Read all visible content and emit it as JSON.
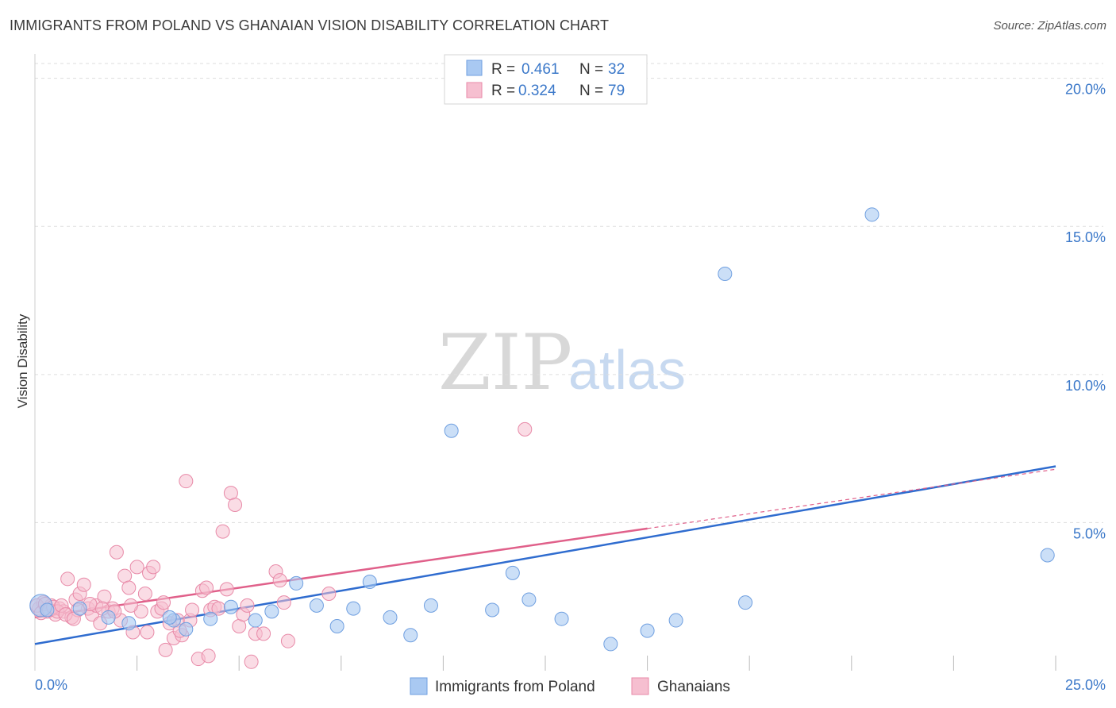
{
  "header": {
    "title": "IMMIGRANTS FROM POLAND VS GHANAIAN VISION DISABILITY CORRELATION CHART",
    "source": "Source: ZipAtlas.com"
  },
  "watermark": {
    "zip": "ZIP",
    "atlas": "atlas"
  },
  "colors": {
    "blue_fill": "#a9c9f2",
    "blue_stroke": "#6f9fe0",
    "blue_line": "#2f6ccf",
    "pink_fill": "#f6bfd0",
    "pink_stroke": "#e88aa8",
    "pink_line": "#e0608a",
    "grid": "#dddddd",
    "tick_text": "#3b78c9"
  },
  "legend": {
    "rows": [
      {
        "r_label": "R =",
        "r_value": "0.461",
        "n_label": "N =",
        "n_value": "32"
      },
      {
        "r_label": "R =",
        "r_value": "0.324",
        "n_label": "N =",
        "n_value": "79"
      }
    ]
  },
  "chart_data": {
    "type": "scatter",
    "title": "IMMIGRANTS FROM POLAND VS GHANAIAN VISION DISABILITY CORRELATION CHART",
    "xlabel": "",
    "ylabel": "Vision Disability",
    "xlim": [
      0,
      25
    ],
    "ylim": [
      0,
      20.5
    ],
    "x_tick_labels": [
      "0.0%",
      "25.0%"
    ],
    "y_ticks": [
      5,
      10,
      15,
      20
    ],
    "y_tick_labels": [
      "5.0%",
      "10.0%",
      "15.0%",
      "20.0%"
    ],
    "legend_position": "top-center",
    "series": [
      {
        "name": "Immigrants from Poland",
        "color": "blue",
        "R": 0.461,
        "N": 32,
        "trend": {
          "x0": 0,
          "y0": 0.9,
          "x1": 25,
          "y1": 6.9
        },
        "points": [
          [
            0.15,
            2.2
          ],
          [
            1.1,
            2.1
          ],
          [
            1.8,
            1.8
          ],
          [
            2.3,
            1.6
          ],
          [
            3.4,
            1.7
          ],
          [
            3.3,
            1.8
          ],
          [
            3.7,
            1.4
          ],
          [
            4.3,
            1.75
          ],
          [
            4.8,
            2.15
          ],
          [
            5.4,
            1.7
          ],
          [
            5.8,
            2.0
          ],
          [
            6.4,
            2.95
          ],
          [
            6.9,
            2.2
          ],
          [
            7.4,
            1.5
          ],
          [
            7.8,
            2.1
          ],
          [
            8.2,
            3.0
          ],
          [
            8.7,
            1.8
          ],
          [
            9.2,
            1.2
          ],
          [
            9.7,
            2.2
          ],
          [
            10.2,
            8.1
          ],
          [
            11.2,
            2.05
          ],
          [
            11.7,
            3.3
          ],
          [
            12.1,
            2.4
          ],
          [
            12.9,
            1.75
          ],
          [
            14.1,
            0.9
          ],
          [
            15.0,
            1.35
          ],
          [
            15.7,
            1.7
          ],
          [
            16.9,
            13.4
          ],
          [
            17.4,
            2.3
          ],
          [
            20.5,
            15.4
          ],
          [
            24.8,
            3.9
          ],
          [
            0.3,
            2.05
          ]
        ]
      },
      {
        "name": "Ghanaians",
        "color": "pink",
        "R": 0.324,
        "N": 79,
        "trend": {
          "x0": 0,
          "y0": 1.8,
          "x1": 15.0,
          "y1": 4.8,
          "dash_to_x": 25,
          "dash_to_y": 6.8
        },
        "points": [
          [
            0.1,
            2.1
          ],
          [
            0.2,
            2.3
          ],
          [
            0.3,
            2.0
          ],
          [
            0.4,
            2.2
          ],
          [
            0.5,
            1.9
          ],
          [
            0.6,
            2.1
          ],
          [
            0.7,
            2.0
          ],
          [
            0.8,
            3.1
          ],
          [
            0.9,
            1.8
          ],
          [
            1.0,
            2.4
          ],
          [
            1.1,
            2.6
          ],
          [
            1.2,
            2.9
          ],
          [
            1.3,
            2.1
          ],
          [
            1.4,
            1.9
          ],
          [
            1.5,
            2.2
          ],
          [
            1.6,
            1.6
          ],
          [
            1.7,
            2.5
          ],
          [
            1.8,
            2.0
          ],
          [
            1.9,
            2.1
          ],
          [
            2.0,
            4.0
          ],
          [
            2.1,
            1.7
          ],
          [
            2.2,
            3.2
          ],
          [
            2.3,
            2.8
          ],
          [
            2.4,
            1.3
          ],
          [
            2.5,
            3.5
          ],
          [
            2.6,
            2.0
          ],
          [
            2.7,
            2.6
          ],
          [
            2.8,
            3.3
          ],
          [
            2.9,
            3.5
          ],
          [
            3.0,
            2.0
          ],
          [
            3.1,
            2.1
          ],
          [
            3.2,
            0.7
          ],
          [
            3.3,
            1.6
          ],
          [
            3.4,
            1.1
          ],
          [
            3.5,
            1.7
          ],
          [
            3.6,
            1.2
          ],
          [
            3.7,
            6.4
          ],
          [
            3.8,
            1.7
          ],
          [
            4.0,
            0.4
          ],
          [
            4.1,
            2.7
          ],
          [
            4.2,
            2.8
          ],
          [
            4.3,
            2.05
          ],
          [
            4.4,
            2.15
          ],
          [
            4.5,
            2.1
          ],
          [
            4.6,
            4.7
          ],
          [
            4.7,
            2.75
          ],
          [
            4.8,
            6.0
          ],
          [
            4.9,
            5.6
          ],
          [
            5.0,
            1.5
          ],
          [
            5.1,
            1.9
          ],
          [
            5.2,
            2.2
          ],
          [
            5.3,
            0.3
          ],
          [
            5.4,
            1.25
          ],
          [
            5.6,
            1.25
          ],
          [
            5.9,
            3.35
          ],
          [
            6.0,
            3.05
          ],
          [
            6.1,
            2.3
          ],
          [
            6.2,
            1.0
          ],
          [
            0.05,
            2.2
          ],
          [
            0.15,
            1.95
          ],
          [
            0.25,
            2.25
          ],
          [
            0.35,
            2.05
          ],
          [
            0.45,
            2.15
          ],
          [
            0.55,
            2.0
          ],
          [
            0.65,
            2.2
          ],
          [
            0.75,
            1.9
          ],
          [
            1.05,
            2.05
          ],
          [
            1.35,
            2.25
          ],
          [
            1.65,
            2.1
          ],
          [
            1.95,
            2.0
          ],
          [
            2.35,
            2.2
          ],
          [
            2.75,
            1.3
          ],
          [
            3.15,
            2.3
          ],
          [
            3.55,
            1.35
          ],
          [
            3.85,
            2.05
          ],
          [
            4.25,
            0.5
          ],
          [
            7.2,
            2.6
          ],
          [
            12.0,
            8.15
          ],
          [
            0.95,
            1.75
          ]
        ]
      }
    ]
  },
  "bottom_legend": {
    "items": [
      {
        "label": "Immigrants from Poland"
      },
      {
        "label": "Ghanaians"
      }
    ]
  }
}
